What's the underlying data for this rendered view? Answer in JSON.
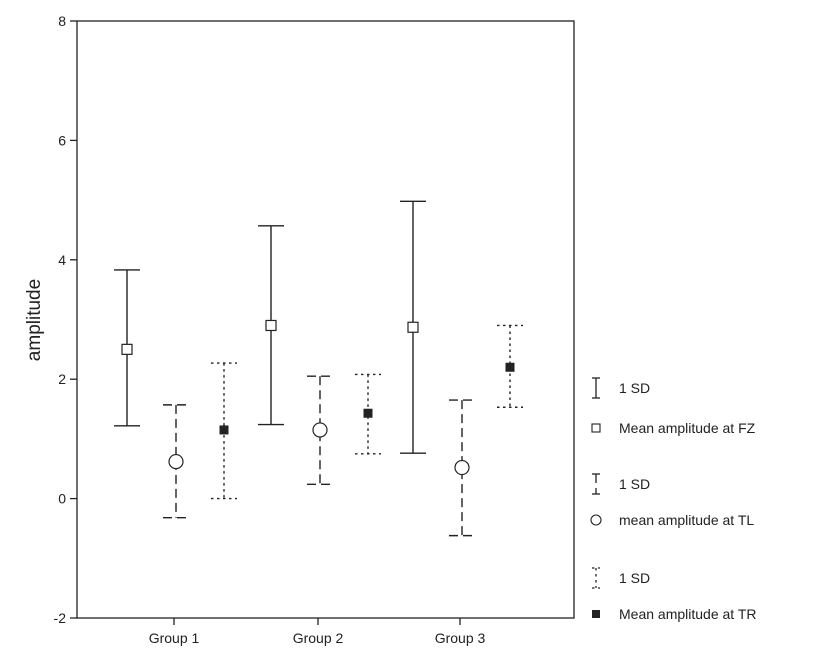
{
  "chart_data": {
    "type": "errorbar",
    "title": "",
    "xlabel": "",
    "ylabel": "amplitude",
    "ylim": [
      -2,
      8
    ],
    "yticks": [
      -2,
      0,
      2,
      4,
      6,
      8
    ],
    "categories": [
      "Group 1",
      "Group 2",
      "Group 3"
    ],
    "legend_position": "right",
    "series": [
      {
        "name": "Mean amplitude at FZ",
        "errorbar_label": "1 SD",
        "line_style": "solid",
        "marker": "open-square",
        "means": [
          2.5,
          2.9,
          2.87
        ],
        "lower": [
          1.22,
          1.24,
          0.76
        ],
        "upper": [
          3.83,
          4.57,
          4.98
        ]
      },
      {
        "name": "mean amplitude at TL",
        "errorbar_label": "1 SD",
        "line_style": "dashed",
        "marker": "open-circle",
        "means": [
          0.62,
          1.15,
          0.52
        ],
        "lower": [
          -0.32,
          0.24,
          -0.62
        ],
        "upper": [
          1.57,
          2.05,
          1.65
        ]
      },
      {
        "name": "Mean amplitude at TR",
        "errorbar_label": "1 SD",
        "line_style": "dotted",
        "marker": "filled-square",
        "means": [
          1.15,
          1.43,
          2.2
        ],
        "lower": [
          0.0,
          0.75,
          1.53
        ],
        "upper": [
          2.27,
          2.08,
          2.9
        ]
      }
    ],
    "colors": {
      "ink": "#222222",
      "background": "#ffffff"
    }
  }
}
